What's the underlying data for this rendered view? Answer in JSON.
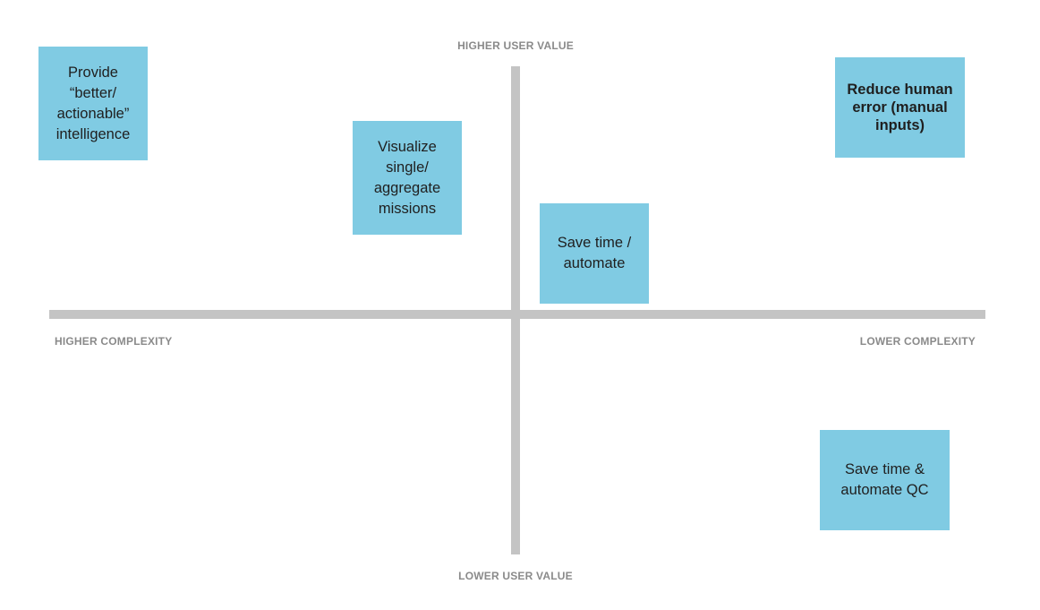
{
  "axes": {
    "top": "HIGHER USER VALUE",
    "bottom": "LOWER USER VALUE",
    "left": "HIGHER COMPLEXITY",
    "right": "LOWER COMPLEXITY"
  },
  "notes": [
    {
      "text": "Provide\n“better/\nactionable”\nintelligence",
      "quadrant": "top-left"
    },
    {
      "text": "Visualize\nsingle/\naggregate\nmissions",
      "quadrant": "top-left"
    },
    {
      "text": "Save time /\nautomate",
      "quadrant": "top-right"
    },
    {
      "text": "Reduce human\nerror (manual\ninputs)",
      "quadrant": "top-right"
    },
    {
      "text": "Save time &\nautomate QC",
      "quadrant": "bottom-right"
    }
  ],
  "colors": {
    "note": "#80cbe3",
    "axis": "#c4c4c4",
    "axis_label": "#8a8a8a"
  }
}
